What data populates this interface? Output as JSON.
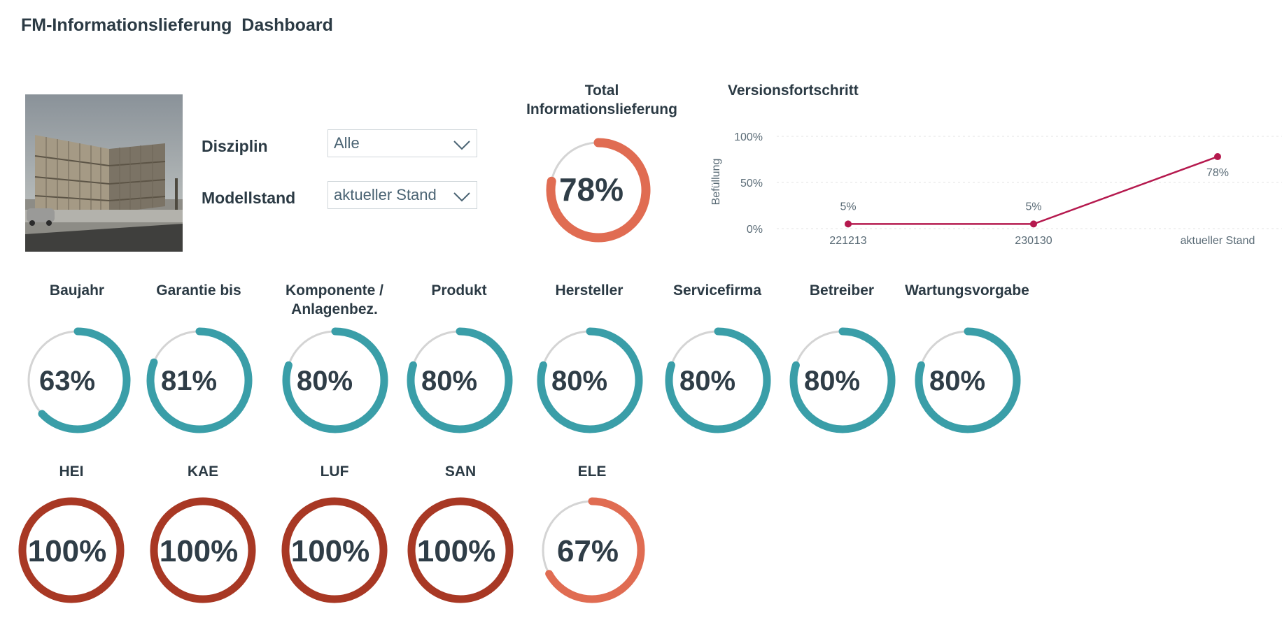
{
  "header": {
    "title": "FM-Informationslieferung  Dashboard"
  },
  "filters": {
    "disziplin": {
      "label": "Disziplin",
      "value": "Alle"
    },
    "modellstand": {
      "label": "Modellstand",
      "value": "aktueller Stand"
    }
  },
  "total": {
    "title_line1": "Total",
    "title_line2": "Informationslieferung",
    "value": 78,
    "label": "78%"
  },
  "version_chart": {
    "title": "Versionsfortschritt",
    "chart_data": {
      "type": "line",
      "title": "Versionsfortschritt",
      "ylabel": "Befüllung",
      "categories": [
        "221213",
        "230130",
        "aktueller Stand"
      ],
      "values": [
        5,
        5,
        78
      ],
      "data_labels": [
        "5%",
        "5%",
        "78%"
      ],
      "yticks": [
        "0%",
        "50%",
        "100%"
      ],
      "ylim": [
        0,
        100
      ],
      "color": "#b5194e"
    }
  },
  "attributes": [
    {
      "title1": "Baujahr",
      "title2": "",
      "value": 63,
      "label": "63%"
    },
    {
      "title1": "Garantie bis",
      "title2": "",
      "value": 81,
      "label": "81%"
    },
    {
      "title1": "Komponente /",
      "title2": "Anlagenbez.",
      "value": 80,
      "label": "80%"
    },
    {
      "title1": "Produkt",
      "title2": "",
      "value": 80,
      "label": "80%"
    },
    {
      "title1": "Hersteller",
      "title2": "",
      "value": 80,
      "label": "80%"
    },
    {
      "title1": "Servicefirma",
      "title2": "",
      "value": 80,
      "label": "80%"
    },
    {
      "title1": "Betreiber",
      "title2": "",
      "value": 80,
      "label": "80%"
    },
    {
      "title1": "Wartungsvorgabe",
      "title2": "",
      "value": 80,
      "label": "80%"
    }
  ],
  "disciplines": [
    {
      "title": "HEI",
      "value": 100,
      "label": "100%"
    },
    {
      "title": "KAE",
      "value": 100,
      "label": "100%"
    },
    {
      "title": "LUF",
      "value": 100,
      "label": "100%"
    },
    {
      "title": "SAN",
      "value": 100,
      "label": "100%"
    },
    {
      "title": "ELE",
      "value": 67,
      "label": "67%"
    }
  ],
  "colors": {
    "teal": "#3a9ea8",
    "orange": "#e06c52",
    "dark_red": "#a83824",
    "track": "#d4d4d4",
    "line": "#b5194e"
  }
}
